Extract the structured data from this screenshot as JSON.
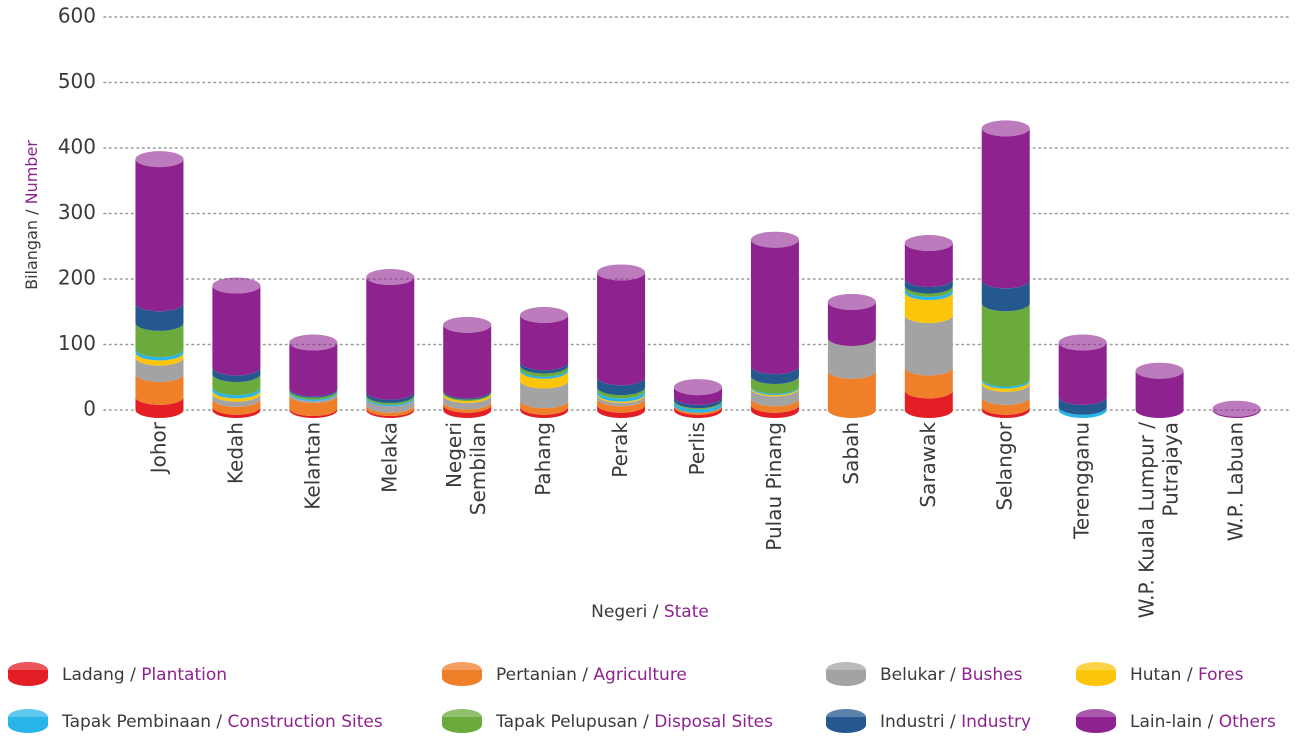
{
  "chart_data": {
    "type": "stacked-cylinder",
    "y_label": "Bilangan / Number",
    "x_label": "Negeri / State",
    "categories": [
      "Johor",
      "Kedah",
      "Kelantan",
      "Melaka",
      "Negeri\nSembilan",
      "Pahang",
      "Perak",
      "Perlis",
      "Pulau Pinang",
      "Sabah",
      "Sarawak",
      "Selangor",
      "Terengganu",
      "W.P. Kuala Lumpur /\nPutrajaya",
      "W.P. Labuan"
    ],
    "series": [
      {
        "name": "Ladang / Plantation",
        "color": "#e31e24",
        "values": [
          20,
          5,
          3,
          3,
          8,
          5,
          8,
          5,
          8,
          0,
          30,
          5,
          0,
          0,
          0
        ]
      },
      {
        "name": "Pertanian / Agriculture",
        "color": "#f07f2a",
        "values": [
          35,
          12,
          20,
          5,
          5,
          10,
          10,
          3,
          10,
          60,
          35,
          15,
          0,
          0,
          0
        ]
      },
      {
        "name": "Belukar / Bushes",
        "color": "#a3a3a3",
        "values": [
          25,
          8,
          3,
          10,
          10,
          30,
          5,
          0,
          15,
          50,
          80,
          20,
          0,
          0,
          0
        ]
      },
      {
        "name": "Hutan / Fores",
        "color": "#fcc50a",
        "values": [
          8,
          5,
          0,
          0,
          3,
          15,
          2,
          0,
          2,
          0,
          35,
          5,
          0,
          0,
          0
        ]
      },
      {
        "name": "Tapak Pembinaan / Construction Sites",
        "color": "#29b5e8",
        "values": [
          5,
          5,
          2,
          2,
          0,
          3,
          5,
          5,
          2,
          0,
          5,
          3,
          5,
          0,
          0
        ]
      },
      {
        "name": "Tapak Pelupusan / Disposal Sites",
        "color": "#6bab3e",
        "values": [
          40,
          20,
          3,
          3,
          2,
          5,
          5,
          2,
          15,
          0,
          5,
          115,
          0,
          0,
          0
        ]
      },
      {
        "name": "Industri / Industry",
        "color": "#24588f",
        "values": [
          30,
          10,
          2,
          5,
          2,
          5,
          15,
          5,
          15,
          0,
          10,
          35,
          15,
          0,
          0
        ]
      },
      {
        "name": "Lain-lain / Others",
        "color": "#8e2390",
        "values": [
          220,
          125,
          70,
          175,
          100,
          72,
          160,
          15,
          193,
          55,
          55,
          232,
          83,
          60,
          2
        ]
      }
    ],
    "ylim": [
      0,
      600
    ],
    "yticks": [
      0,
      100,
      200,
      300,
      400,
      500,
      600
    ],
    "grid": true
  }
}
